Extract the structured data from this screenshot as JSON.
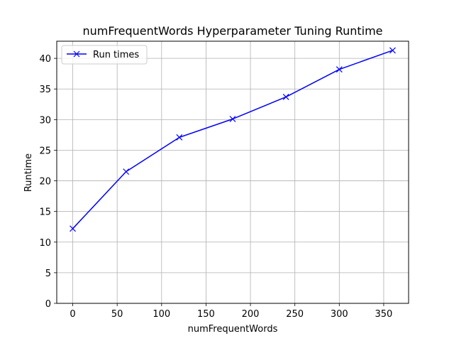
{
  "chart_data": {
    "type": "line",
    "title": "numFrequentWords Hyperparameter Tuning Runtime",
    "xlabel": "numFrequentWords",
    "ylabel": "Runtime",
    "xlim": [
      -18,
      378
    ],
    "ylim": [
      0,
      42.8
    ],
    "xticks": [
      0,
      50,
      100,
      150,
      200,
      250,
      300,
      350
    ],
    "yticks": [
      0,
      5,
      10,
      15,
      20,
      25,
      30,
      35,
      40
    ],
    "grid": true,
    "legend_position": "top-left",
    "series": [
      {
        "name": "Run times",
        "color": "#0000ff",
        "marker": "x",
        "x": [
          0,
          60,
          120,
          180,
          240,
          300,
          360
        ],
        "y": [
          12.2,
          21.5,
          27.1,
          30.1,
          33.7,
          38.2,
          41.3
        ]
      }
    ]
  }
}
